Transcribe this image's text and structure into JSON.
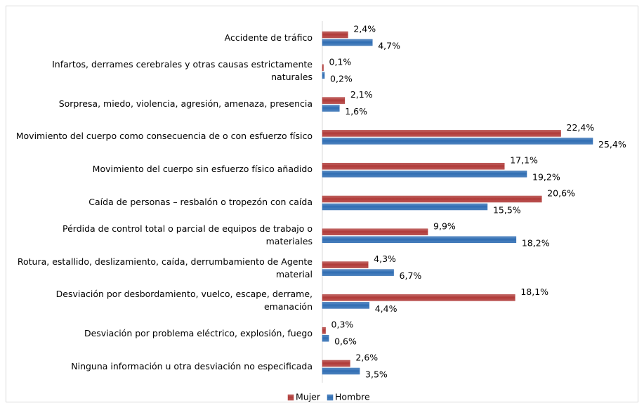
{
  "chart_data": {
    "type": "bar",
    "orientation": "horizontal",
    "categories": [
      "Accidente de tráfico",
      "Infartos, derrames cerebrales y otras causas estrictamente naturales",
      "Sorpresa, miedo, violencia, agresión, amenaza, presencia",
      "Movimiento del cuerpo como consecuencia de o con esfuerzo físico",
      "Movimiento del cuerpo sin esfuerzo físico añadido",
      "Caída de personas – resbalón o tropezón con caída",
      "Pérdida de control total o parcial de equipos de trabajo o materiales",
      "Rotura, estallido, deslizamiento, caída, derrumbamiento de Agente material",
      "Desviación por desbordamiento, vuelco, escape, derrame, emanación",
      "Desviación por problema eléctrico, explosión, fuego",
      "Ninguna información u otra desviación no especificada"
    ],
    "series": [
      {
        "name": "Mujer",
        "color": "#b03a38",
        "values": [
          2.4,
          0.1,
          2.1,
          22.4,
          17.1,
          20.6,
          9.9,
          4.3,
          18.1,
          0.3,
          2.6
        ],
        "value_labels": [
          "2,4%",
          "0,1%",
          "2,1%",
          "22,4%",
          "17,1%",
          "20,6%",
          "9,9%",
          "4,3%",
          "18,1%",
          "0,3%",
          "2,6%"
        ]
      },
      {
        "name": "Hombre",
        "color": "#2f6db3",
        "values": [
          4.7,
          0.2,
          1.6,
          25.4,
          19.2,
          15.5,
          18.2,
          6.7,
          4.4,
          0.6,
          3.5
        ],
        "value_labels": [
          "4,7%",
          "0,2%",
          "1,6%",
          "25,4%",
          "19,2%",
          "15,5%",
          "18,2%",
          "6,7%",
          "4,4%",
          "0,6%",
          "3,5%"
        ]
      }
    ],
    "legend": "bottom"
  }
}
